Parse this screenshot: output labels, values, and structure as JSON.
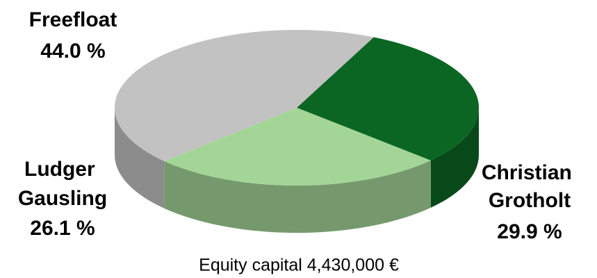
{
  "chart_data": {
    "type": "pie",
    "categories": [
      "Christian Grotholt",
      "Ludger Gausling",
      "Freefloat"
    ],
    "values": [
      29.9,
      26.1,
      44.0
    ],
    "value_labels": [
      "29.9 %",
      "26.1 %",
      "44.0 %"
    ],
    "colors": [
      "#0b6624",
      "#a3d597",
      "#c2c2c2"
    ],
    "annotation": "Equity capital 4,430,000 €"
  }
}
